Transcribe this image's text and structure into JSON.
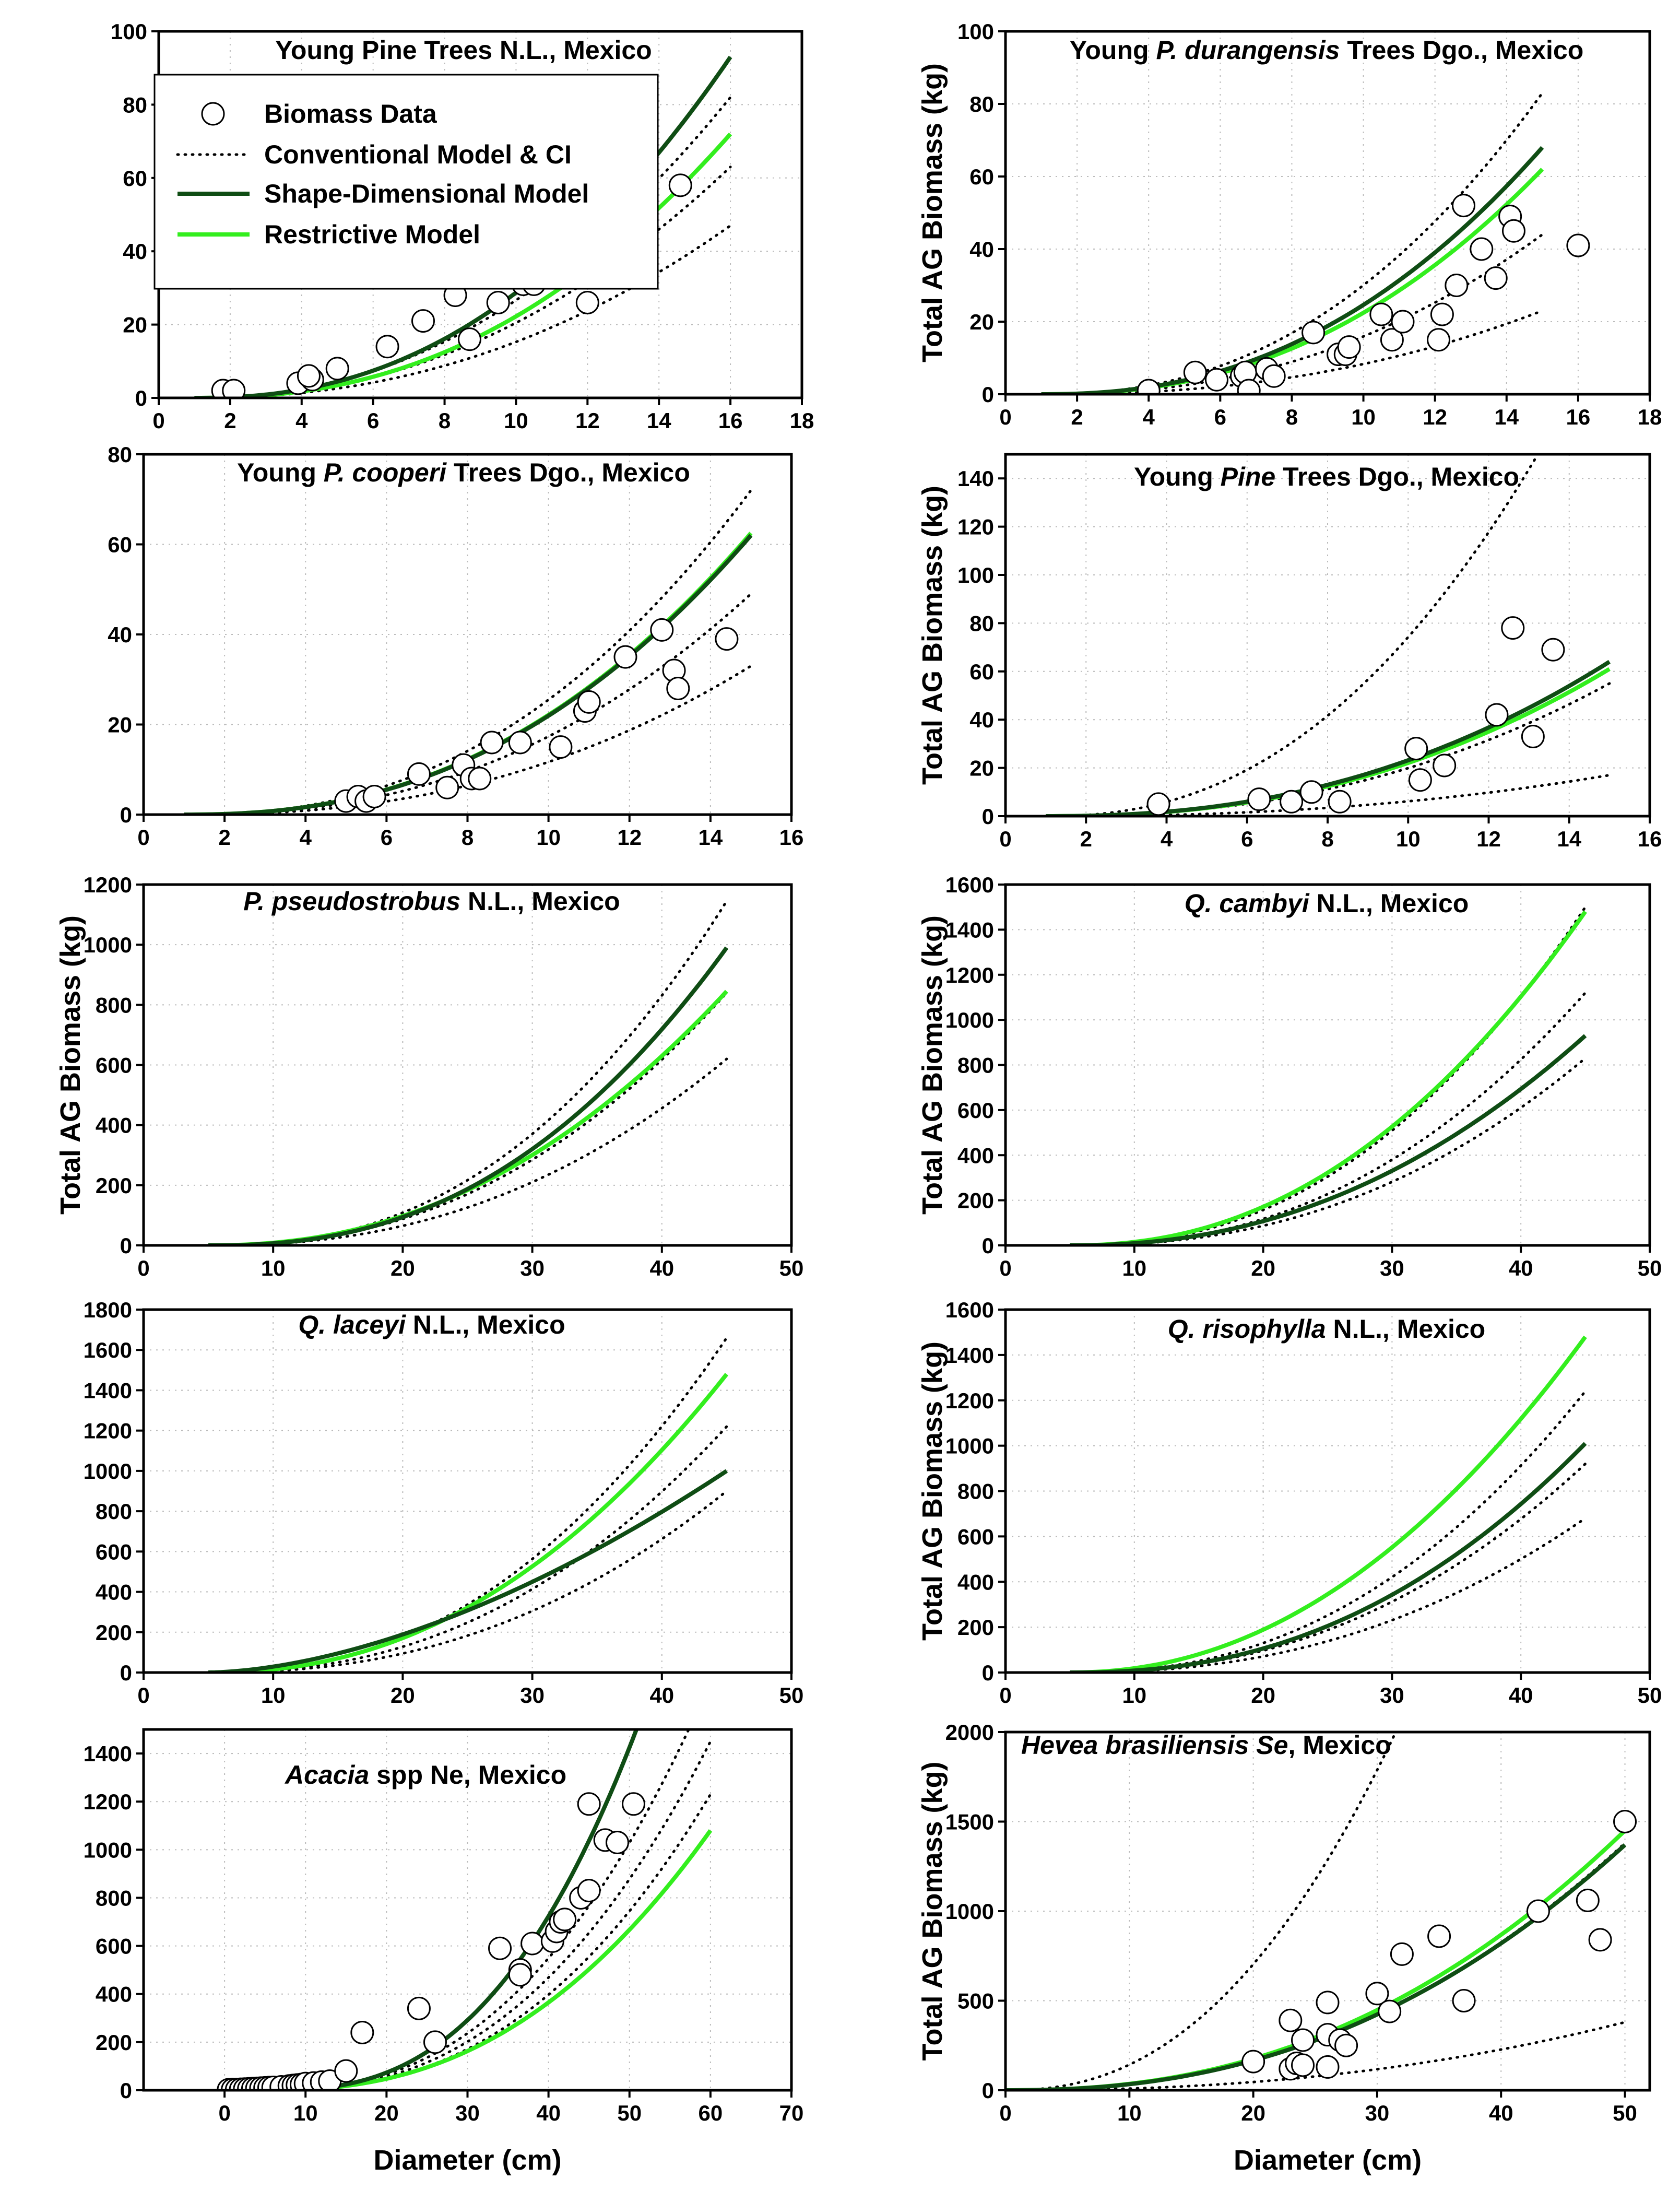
{
  "figure": {
    "legend": {
      "items": [
        {
          "label": "Biomass Data",
          "kind": "marker"
        },
        {
          "label": "Conventional Model & CI",
          "kind": "dotted"
        },
        {
          "label": "Shape-Dimensional Model",
          "kind": "dark"
        },
        {
          "label": "Restrictive Model",
          "kind": "light"
        }
      ]
    },
    "colors": {
      "dark": "#0f4d14",
      "light": "#33ee1e",
      "dotted": "#000000",
      "marker": "#000000"
    }
  },
  "chart_data": [
    {
      "type": "scatter",
      "title_parts": [
        {
          "t": "Young Pine  Trees N.L., Mexico",
          "i": false
        }
      ],
      "ylabel": "",
      "xlabel": "",
      "xlim": [
        0,
        18
      ],
      "ylim": [
        0,
        100
      ],
      "xticks": [
        0,
        2,
        4,
        6,
        8,
        10,
        12,
        14,
        16,
        18
      ],
      "yticks": [
        0,
        20,
        40,
        60,
        80,
        100
      ],
      "legend": "top-left",
      "points": [
        [
          1.8,
          2
        ],
        [
          2.1,
          2
        ],
        [
          3.9,
          4
        ],
        [
          4.3,
          5
        ],
        [
          4.2,
          6
        ],
        [
          5,
          8
        ],
        [
          6.4,
          14
        ],
        [
          7.4,
          21
        ],
        [
          8.3,
          28
        ],
        [
          8.7,
          16
        ],
        [
          9.1,
          35
        ],
        [
          9.5,
          26
        ],
        [
          10.2,
          31
        ],
        [
          10.5,
          31
        ],
        [
          12,
          26
        ],
        [
          14.6,
          58
        ]
      ],
      "curves": {
        "shape": {
          "xmin": 1,
          "xmax": 16,
          "ymax": 93,
          "p": 2.3
        },
        "restrictive": {
          "xmin": 1,
          "xmax": 16,
          "ymax": 72,
          "p": 2.3
        },
        "dotted": [
          {
            "xmin": 1,
            "xmax": 16,
            "ymax": 82,
            "p": 2.2
          },
          {
            "xmin": 1,
            "xmax": 16,
            "ymax": 63,
            "p": 2.2
          },
          {
            "xmin": 1,
            "xmax": 16,
            "ymax": 47,
            "p": 2.2
          }
        ]
      }
    },
    {
      "type": "scatter",
      "title_parts": [
        {
          "t": "Young ",
          "i": false
        },
        {
          "t": "P. durangensis",
          "i": true
        },
        {
          "t": " Trees Dgo., Mexico",
          "i": false
        }
      ],
      "ylabel": "Total AG Biomass (kg)",
      "xlabel": "",
      "xlim": [
        0,
        18
      ],
      "ylim": [
        0,
        100
      ],
      "xticks": [
        0,
        2,
        4,
        6,
        8,
        10,
        12,
        14,
        16,
        18
      ],
      "yticks": [
        0,
        20,
        40,
        60,
        80,
        100
      ],
      "points": [
        [
          4,
          1
        ],
        [
          5.3,
          6
        ],
        [
          5.9,
          4
        ],
        [
          6.6,
          5
        ],
        [
          6.7,
          6
        ],
        [
          6.8,
          1
        ],
        [
          7.3,
          7
        ],
        [
          7.5,
          5
        ],
        [
          8.6,
          17
        ],
        [
          9.3,
          11
        ],
        [
          9.5,
          11
        ],
        [
          9.6,
          13
        ],
        [
          10.5,
          22
        ],
        [
          10.8,
          15
        ],
        [
          11.1,
          20
        ],
        [
          12.1,
          15
        ],
        [
          12.2,
          22
        ],
        [
          12.6,
          30
        ],
        [
          12.8,
          52
        ],
        [
          13.3,
          40
        ],
        [
          13.7,
          32
        ],
        [
          14.1,
          49
        ],
        [
          14.2,
          45
        ],
        [
          16,
          41
        ]
      ],
      "curves": {
        "shape": {
          "xmin": 1,
          "xmax": 15,
          "ymax": 68,
          "p": 2.3
        },
        "restrictive": {
          "xmin": 1,
          "xmax": 15,
          "ymax": 62,
          "p": 2.3
        },
        "dotted": [
          {
            "xmin": 1,
            "xmax": 15,
            "ymax": 83,
            "p": 2.3
          },
          {
            "xmin": 1,
            "xmax": 15,
            "ymax": 44,
            "p": 2.3
          },
          {
            "xmin": 1,
            "xmax": 15,
            "ymax": 23,
            "p": 2.3
          }
        ]
      }
    },
    {
      "type": "scatter",
      "title_parts": [
        {
          "t": "Young ",
          "i": false
        },
        {
          "t": "P. cooperi",
          "i": true
        },
        {
          "t": " Trees Dgo., Mexico",
          "i": false
        }
      ],
      "ylabel": "",
      "xlabel": "",
      "xlim": [
        0,
        16
      ],
      "ylim": [
        0,
        80
      ],
      "xticks": [
        0,
        2,
        4,
        6,
        8,
        10,
        12,
        14,
        16
      ],
      "yticks": [
        0,
        20,
        40,
        60,
        80
      ],
      "points": [
        [
          5,
          3
        ],
        [
          5.3,
          4
        ],
        [
          5.5,
          3
        ],
        [
          5.7,
          4
        ],
        [
          6.8,
          9
        ],
        [
          7.5,
          6
        ],
        [
          7.9,
          11
        ],
        [
          8.1,
          8
        ],
        [
          8.3,
          8
        ],
        [
          8.6,
          16
        ],
        [
          9.3,
          16
        ],
        [
          10.3,
          15
        ],
        [
          10.9,
          23
        ],
        [
          11,
          25
        ],
        [
          11.9,
          35
        ],
        [
          12.8,
          41
        ],
        [
          13.1,
          32
        ],
        [
          13.2,
          28
        ],
        [
          14.4,
          39
        ]
      ],
      "curves": {
        "shape": {
          "xmin": 1,
          "xmax": 15,
          "ymax": 62,
          "p": 2.35
        },
        "restrictive": {
          "xmin": 1,
          "xmax": 15,
          "ymax": 62.5,
          "p": 2.35
        },
        "dotted": [
          {
            "xmin": 1,
            "xmax": 15,
            "ymax": 72,
            "p": 2.35
          },
          {
            "xmin": 1,
            "xmax": 15,
            "ymax": 49,
            "p": 2.35
          },
          {
            "xmin": 1,
            "xmax": 15,
            "ymax": 33,
            "p": 2.35
          }
        ]
      }
    },
    {
      "type": "scatter",
      "title_parts": [
        {
          "t": "Young ",
          "i": false
        },
        {
          "t": "Pine",
          "i": true
        },
        {
          "t": " Trees Dgo., Mexico",
          "i": false
        }
      ],
      "ylabel": "Total AG Biomass (kg)",
      "xlabel": "",
      "xlim": [
        0,
        16
      ],
      "ylim": [
        0,
        150
      ],
      "xticks": [
        0,
        2,
        4,
        6,
        8,
        10,
        12,
        14,
        16
      ],
      "yticks": [
        0,
        20,
        40,
        60,
        80,
        100,
        120,
        140
      ],
      "points": [
        [
          3.8,
          5
        ],
        [
          6.3,
          7
        ],
        [
          7.1,
          6
        ],
        [
          7.6,
          10
        ],
        [
          8.3,
          6
        ],
        [
          10.2,
          28
        ],
        [
          10.3,
          15
        ],
        [
          10.9,
          21
        ],
        [
          12.2,
          42
        ],
        [
          12.6,
          78
        ],
        [
          13.1,
          33
        ],
        [
          13.6,
          69
        ]
      ],
      "curves": {
        "shape": {
          "xmin": 1,
          "xmax": 15,
          "ymax": 64,
          "p": 2.3
        },
        "restrictive": {
          "xmin": 1,
          "xmax": 15,
          "ymax": 61,
          "p": 2.3
        },
        "dotted": [
          {
            "xmin": 1,
            "xmax": 15,
            "ymax": 205,
            "p": 2.3
          },
          {
            "xmin": 1,
            "xmax": 15,
            "ymax": 55,
            "p": 2.3
          },
          {
            "xmin": 1,
            "xmax": 15,
            "ymax": 17,
            "p": 2.3
          }
        ]
      }
    },
    {
      "type": "line",
      "title_parts": [
        {
          "t": "P. pseudostrobus",
          "i": true
        },
        {
          "t": " N.L., Mexico",
          "i": false
        }
      ],
      "ylabel": "Total AG Biomass (kg)",
      "xlabel": "",
      "xlim": [
        0,
        50
      ],
      "ylim": [
        0,
        1200
      ],
      "xticks": [
        0,
        10,
        20,
        30,
        40,
        50
      ],
      "yticks": [
        0,
        200,
        400,
        600,
        800,
        1000,
        1200
      ],
      "points": [],
      "curves": {
        "shape": {
          "xmin": 5,
          "xmax": 45,
          "ymax": 990,
          "p": 2.4
        },
        "restrictive": {
          "xmin": 5,
          "xmax": 45,
          "ymax": 845,
          "p": 2.2
        },
        "dotted": [
          {
            "xmin": 5,
            "xmax": 45,
            "ymax": 1145,
            "p": 2.4
          },
          {
            "xmin": 5,
            "xmax": 45,
            "ymax": 840,
            "p": 2.3
          },
          {
            "xmin": 5,
            "xmax": 45,
            "ymax": 620,
            "p": 2.3
          }
        ]
      }
    },
    {
      "type": "line",
      "title_parts": [
        {
          "t": "Q. cambyi",
          "i": true
        },
        {
          "t": " N.L., Mexico",
          "i": false
        }
      ],
      "ylabel": "Total AG Biomass (kg)",
      "xlabel": "",
      "xlim": [
        0,
        50
      ],
      "ylim": [
        0,
        1600
      ],
      "xticks": [
        0,
        10,
        20,
        30,
        40,
        50
      ],
      "yticks": [
        0,
        200,
        400,
        600,
        800,
        1000,
        1200,
        1400,
        1600
      ],
      "points": [],
      "curves": {
        "shape": {
          "xmin": 5,
          "xmax": 45,
          "ymax": 930,
          "p": 2.2
        },
        "restrictive": {
          "xmin": 5,
          "xmax": 45,
          "ymax": 1480,
          "p": 2.2
        },
        "dotted": [
          {
            "xmin": 5,
            "xmax": 45,
            "ymax": 1500,
            "p": 2.3
          },
          {
            "xmin": 5,
            "xmax": 45,
            "ymax": 1120,
            "p": 2.3
          },
          {
            "xmin": 5,
            "xmax": 45,
            "ymax": 830,
            "p": 2.3
          }
        ]
      }
    },
    {
      "type": "line",
      "title_parts": [
        {
          "t": "Q. laceyi",
          "i": true
        },
        {
          "t": " N.L., Mexico",
          "i": false
        }
      ],
      "ylabel": "",
      "xlabel": "",
      "xlim": [
        0,
        50
      ],
      "ylim": [
        0,
        1800
      ],
      "xticks": [
        0,
        10,
        20,
        30,
        40,
        50
      ],
      "yticks": [
        0,
        200,
        400,
        600,
        800,
        1000,
        1200,
        1400,
        1600,
        1800
      ],
      "points": [],
      "curves": {
        "shape": {
          "xmin": 5,
          "xmax": 45,
          "ymax": 1000,
          "p": 1.7
        },
        "restrictive": {
          "xmin": 5,
          "xmax": 45,
          "ymax": 1480,
          "p": 2.2
        },
        "dotted": [
          {
            "xmin": 5,
            "xmax": 45,
            "ymax": 1660,
            "p": 2.3
          },
          {
            "xmin": 5,
            "xmax": 45,
            "ymax": 1220,
            "p": 2.3
          },
          {
            "xmin": 5,
            "xmax": 45,
            "ymax": 900,
            "p": 2.3
          }
        ]
      }
    },
    {
      "type": "line",
      "title_parts": [
        {
          "t": "Q. risophylla",
          "i": true
        },
        {
          "t": " N.L., Mexico",
          "i": false
        }
      ],
      "ylabel": "Total AG Biomass (kg)",
      "xlabel": "",
      "xlim": [
        0,
        50
      ],
      "ylim": [
        0,
        1600
      ],
      "xticks": [
        0,
        10,
        20,
        30,
        40,
        50
      ],
      "yticks": [
        0,
        200,
        400,
        600,
        800,
        1000,
        1200,
        1400,
        1600
      ],
      "points": [],
      "curves": {
        "shape": {
          "xmin": 5,
          "xmax": 45,
          "ymax": 1010,
          "p": 2.3
        },
        "restrictive": {
          "xmin": 5,
          "xmax": 45,
          "ymax": 1480,
          "p": 2.1
        },
        "dotted": [
          {
            "xmin": 5,
            "xmax": 45,
            "ymax": 1240,
            "p": 2.3
          },
          {
            "xmin": 5,
            "xmax": 45,
            "ymax": 920,
            "p": 2.3
          },
          {
            "xmin": 5,
            "xmax": 45,
            "ymax": 680,
            "p": 2.3
          }
        ]
      }
    },
    {
      "type": "scatter",
      "title_parts": [
        {
          "t": "Acacia",
          "i": true
        },
        {
          "t": " spp Ne, Mexico",
          "i": false
        }
      ],
      "ylabel": "",
      "xlabel": "Diameter (cm)",
      "xlim": [
        -10,
        70
      ],
      "ylim": [
        0,
        1500
      ],
      "xticks": [
        0,
        10,
        20,
        30,
        40,
        50,
        60,
        70
      ],
      "yticks": [
        0,
        200,
        400,
        600,
        800,
        1000,
        1200,
        1400
      ],
      "points": [
        [
          0.5,
          2
        ],
        [
          1,
          3
        ],
        [
          1.5,
          3
        ],
        [
          2,
          4
        ],
        [
          2.5,
          5
        ],
        [
          3,
          6
        ],
        [
          3.5,
          7
        ],
        [
          4,
          8
        ],
        [
          4.5,
          9
        ],
        [
          5,
          10
        ],
        [
          5.5,
          11
        ],
        [
          6,
          12
        ],
        [
          7,
          14
        ],
        [
          8,
          18
        ],
        [
          8.5,
          20
        ],
        [
          9,
          22
        ],
        [
          9.5,
          24
        ],
        [
          10,
          28
        ],
        [
          11,
          30
        ],
        [
          12,
          34
        ],
        [
          13,
          38
        ],
        [
          15,
          80
        ],
        [
          17,
          240
        ],
        [
          24,
          340
        ],
        [
          26,
          200
        ],
        [
          34,
          590
        ],
        [
          36.5,
          500
        ],
        [
          36.5,
          480
        ],
        [
          38,
          610
        ],
        [
          40.5,
          620
        ],
        [
          41,
          660
        ],
        [
          41.5,
          700
        ],
        [
          42,
          710
        ],
        [
          44,
          800
        ],
        [
          45,
          1190
        ],
        [
          45,
          830
        ],
        [
          47,
          1040
        ],
        [
          48.5,
          1030
        ],
        [
          50.5,
          1190
        ]
      ],
      "curves": {
        "shape": {
          "xmin": 5,
          "xmax": 60,
          "ymax": 2450,
          "p": 2.7
        },
        "restrictive": {
          "xmin": 5,
          "xmax": 60,
          "ymax": 1080,
          "p": 2.4
        },
        "dotted": [
          {
            "xmin": 5,
            "xmax": 60,
            "ymax": 1700,
            "p": 2.5
          },
          {
            "xmin": 5,
            "xmax": 60,
            "ymax": 1450,
            "p": 2.5
          },
          {
            "xmin": 5,
            "xmax": 60,
            "ymax": 1230,
            "p": 2.5
          }
        ]
      }
    },
    {
      "type": "scatter",
      "title_parts": [
        {
          "t": "Hevea brasiliensis Se",
          "i": true
        },
        {
          "t": ", Mexico",
          "i": false
        }
      ],
      "ylabel": "Total AG Biomass (kg)",
      "xlabel": "Diameter (cm)",
      "xlim": [
        0,
        52
      ],
      "ylim": [
        0,
        2000
      ],
      "xticks": [
        0,
        10,
        20,
        30,
        40,
        50
      ],
      "yticks": [
        0,
        500,
        1000,
        1500,
        2000
      ],
      "points": [
        [
          20,
          160
        ],
        [
          23,
          120
        ],
        [
          23,
          390
        ],
        [
          23.5,
          150
        ],
        [
          24,
          280
        ],
        [
          24,
          140
        ],
        [
          26,
          490
        ],
        [
          26,
          310
        ],
        [
          26,
          130
        ],
        [
          27,
          280
        ],
        [
          27.5,
          250
        ],
        [
          30,
          540
        ],
        [
          31,
          440
        ],
        [
          32,
          760
        ],
        [
          35,
          860
        ],
        [
          37,
          500
        ],
        [
          43,
          1000
        ],
        [
          47,
          1060
        ],
        [
          48,
          840
        ],
        [
          50,
          1500
        ]
      ],
      "curves": {
        "shape": {
          "xmin": 0,
          "xmax": 50,
          "ymax": 1370,
          "p": 2.3
        },
        "restrictive": {
          "xmin": 0,
          "xmax": 50,
          "ymax": 1450,
          "p": 2.3
        },
        "dotted": [
          {
            "xmin": 0,
            "xmax": 31.5,
            "ymax": 2000,
            "p": 2.3
          },
          {
            "xmin": 0,
            "xmax": 50,
            "ymax": 1380,
            "p": 2.3
          },
          {
            "xmin": 0,
            "xmax": 50,
            "ymax": 380,
            "p": 2.3
          }
        ]
      }
    }
  ]
}
